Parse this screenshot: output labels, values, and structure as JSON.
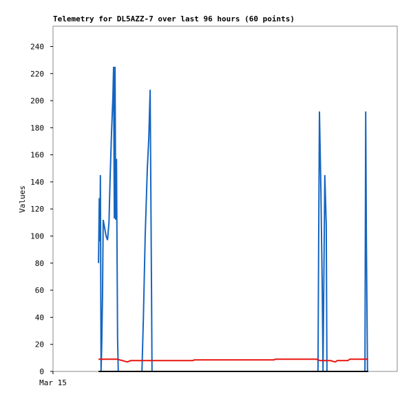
{
  "chart_data": {
    "type": "line",
    "title": "Telemetry for DL5AZZ-7 over last 96 hours (60 points)",
    "y_label": "Values",
    "xlim": [
      0,
      96
    ],
    "xticks": [
      {
        "value": 0,
        "label": "Mar 15"
      }
    ],
    "ylim": [
      0,
      255
    ],
    "yticks": [
      0,
      20,
      40,
      60,
      80,
      100,
      120,
      140,
      160,
      180,
      200,
      220,
      240
    ],
    "series": [
      {
        "color": "#1565c0",
        "x": [
          12.7,
          12.9,
          13.1,
          13.2,
          13.4,
          13.6,
          13.8,
          14.0,
          14.8,
          15.2,
          15.6,
          15.9,
          16.3,
          16.7,
          16.9,
          17.1,
          17.3,
          17.5,
          17.7,
          18.0,
          18.2,
          24.8,
          25.2,
          25.7,
          26.3,
          26.7,
          27.1,
          27.5,
          27.6,
          73.9,
          74.1,
          74.3,
          74.7,
          75.1,
          75.3,
          75.8,
          76.2,
          76.4,
          87.0,
          87.2,
          87.4,
          87.7
        ],
        "values": [
          80,
          128,
          96,
          145,
          0,
          20,
          56,
          112,
          100,
          97,
          110,
          140,
          175,
          203,
          225,
          113,
          225,
          112,
          157,
          24,
          0,
          0,
          40,
          100,
          150,
          172,
          208,
          52,
          0,
          0,
          97,
          192,
          135,
          60,
          0,
          145,
          108,
          0,
          0,
          192,
          96,
          0
        ]
      },
      {
        "color": "#e8130d",
        "x": [
          12.7,
          17.9,
          19.4,
          20.7,
          21.7,
          39.0,
          39.4,
          61.6,
          62.0,
          73.5,
          74.5,
          77.4,
          78.7,
          79.3,
          82.2,
          82.8,
          87.9
        ],
        "values": [
          9,
          9,
          8,
          7,
          8,
          8,
          8.5,
          8.5,
          9,
          9,
          8,
          8,
          7,
          8,
          8,
          9,
          9
        ]
      },
      {
        "color": "#000000",
        "x": [
          12.7,
          87.9
        ],
        "values": [
          0,
          0
        ]
      }
    ]
  }
}
